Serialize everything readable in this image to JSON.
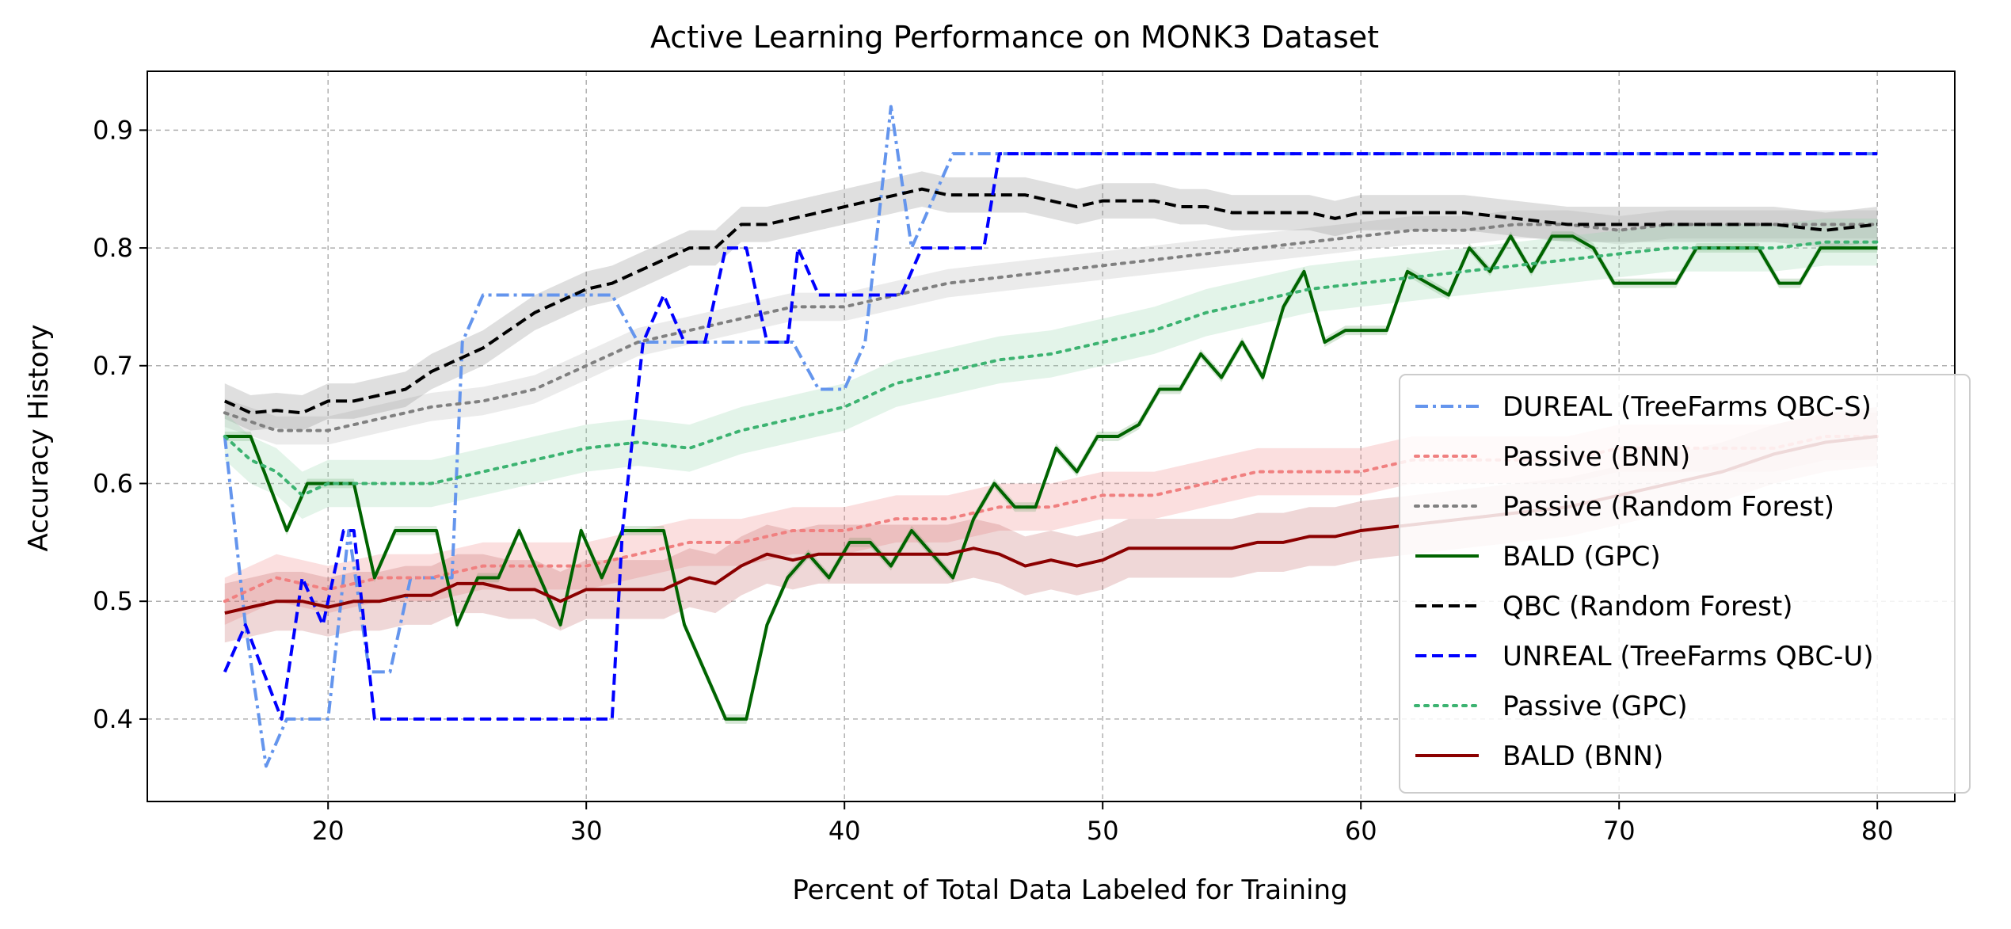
{
  "chart_data": {
    "type": "line",
    "title": "Active Learning Performance on MONK3 Dataset",
    "xlabel": "Percent of Total Data Labeled for Training",
    "ylabel": "Accuracy History",
    "xlim": [
      13,
      83
    ],
    "ylim": [
      0.33,
      0.95
    ],
    "xticks": [
      20,
      30,
      40,
      50,
      60,
      70,
      80
    ],
    "yticks": [
      0.4,
      0.5,
      0.6,
      0.7,
      0.8,
      0.9
    ],
    "grid": true,
    "legend_position": "center-right",
    "series": [
      {
        "name": "DUREAL (TreeFarms QBC-S)",
        "color": "#6495ED",
        "dash": "dashdot",
        "x": [
          16,
          16.8,
          17.6,
          18.4,
          19.2,
          20,
          20.8,
          21.6,
          22.4,
          23.2,
          24,
          24.8,
          25.2,
          26,
          27,
          28,
          29,
          30,
          31,
          32,
          33,
          34,
          35,
          36,
          37,
          38,
          39,
          40,
          40.8,
          41.8,
          42.6,
          43.4,
          44.2,
          45,
          46,
          50,
          60,
          70,
          80
        ],
        "y": [
          0.64,
          0.48,
          0.36,
          0.4,
          0.4,
          0.4,
          0.56,
          0.44,
          0.44,
          0.52,
          0.52,
          0.52,
          0.72,
          0.76,
          0.76,
          0.76,
          0.76,
          0.76,
          0.76,
          0.72,
          0.72,
          0.72,
          0.72,
          0.72,
          0.72,
          0.72,
          0.68,
          0.68,
          0.72,
          0.92,
          0.8,
          0.84,
          0.88,
          0.88,
          0.88,
          0.88,
          0.88,
          0.88,
          0.88
        ]
      },
      {
        "name": "Passive (BNN)",
        "color": "#F08080",
        "dash": "dotted",
        "band": "#F08080",
        "x": [
          16,
          18,
          20,
          22,
          24,
          26,
          28,
          30,
          32,
          34,
          36,
          38,
          40,
          42,
          44,
          46,
          48,
          50,
          52,
          54,
          56,
          58,
          60,
          62,
          64,
          66,
          68,
          70,
          72,
          74,
          76,
          78,
          80
        ],
        "y": [
          0.5,
          0.52,
          0.51,
          0.52,
          0.52,
          0.53,
          0.53,
          0.53,
          0.54,
          0.55,
          0.55,
          0.56,
          0.56,
          0.57,
          0.57,
          0.58,
          0.58,
          0.59,
          0.59,
          0.6,
          0.61,
          0.61,
          0.61,
          0.62,
          0.62,
          0.62,
          0.62,
          0.63,
          0.63,
          0.63,
          0.63,
          0.64,
          0.64
        ],
        "err": 0.02
      },
      {
        "name": "Passive (Random Forest)",
        "color": "#808080",
        "dash": "dotted",
        "band": "#B0B0B0",
        "x": [
          16,
          18,
          20,
          22,
          24,
          26,
          28,
          30,
          32,
          34,
          36,
          38,
          40,
          42,
          44,
          46,
          48,
          50,
          52,
          54,
          56,
          58,
          60,
          62,
          64,
          66,
          68,
          70,
          72,
          74,
          76,
          78,
          80
        ],
        "y": [
          0.66,
          0.645,
          0.645,
          0.655,
          0.665,
          0.67,
          0.68,
          0.7,
          0.72,
          0.73,
          0.74,
          0.75,
          0.75,
          0.76,
          0.77,
          0.775,
          0.78,
          0.785,
          0.79,
          0.795,
          0.8,
          0.805,
          0.81,
          0.815,
          0.815,
          0.82,
          0.82,
          0.815,
          0.82,
          0.82,
          0.82,
          0.82,
          0.82
        ],
        "err": 0.012
      },
      {
        "name": "BALD (GPC)",
        "color": "#006400",
        "dash": "solid",
        "band": "#5E9E5E",
        "x": [
          16,
          17,
          18.4,
          19.2,
          20,
          21,
          21.8,
          22.6,
          23.4,
          24.2,
          25,
          25.8,
          26.6,
          27.4,
          28.2,
          29,
          29.8,
          30.6,
          31.4,
          32.2,
          33,
          33.8,
          34.6,
          35.4,
          36.2,
          37,
          37.8,
          38.6,
          39.4,
          40.2,
          41,
          41.8,
          42.6,
          43.4,
          44.2,
          45,
          45.8,
          46.6,
          47.4,
          48.2,
          49,
          49.8,
          50.6,
          51.4,
          52.2,
          53,
          53.8,
          54.6,
          55.4,
          56.2,
          57,
          57.8,
          58.6,
          59.4,
          60.2,
          61,
          61.8,
          62.6,
          63.4,
          64.2,
          65,
          65.8,
          66.6,
          67.4,
          68.2,
          69,
          69.8,
          70.6,
          71.4,
          72.2,
          73,
          73.8,
          74.6,
          75.4,
          76.2,
          77,
          77.8,
          78.6,
          79.4,
          80
        ],
        "y": [
          0.64,
          0.64,
          0.56,
          0.6,
          0.6,
          0.6,
          0.52,
          0.56,
          0.56,
          0.56,
          0.48,
          0.52,
          0.52,
          0.56,
          0.52,
          0.48,
          0.56,
          0.52,
          0.56,
          0.56,
          0.56,
          0.48,
          0.44,
          0.4,
          0.4,
          0.48,
          0.52,
          0.54,
          0.52,
          0.55,
          0.55,
          0.53,
          0.56,
          0.54,
          0.52,
          0.57,
          0.6,
          0.58,
          0.58,
          0.63,
          0.61,
          0.64,
          0.64,
          0.65,
          0.68,
          0.68,
          0.71,
          0.69,
          0.72,
          0.69,
          0.75,
          0.78,
          0.72,
          0.73,
          0.73,
          0.73,
          0.78,
          0.77,
          0.76,
          0.8,
          0.78,
          0.81,
          0.78,
          0.81,
          0.81,
          0.8,
          0.77,
          0.77,
          0.77,
          0.77,
          0.8,
          0.8,
          0.8,
          0.8,
          0.77,
          0.77,
          0.8,
          0.8,
          0.8,
          0.8
        ],
        "err": 0.004
      },
      {
        "name": "QBC (Random Forest)",
        "color": "#000000",
        "dash": "dashed",
        "band": "#808080",
        "x": [
          16,
          17,
          18,
          19,
          20,
          21,
          22,
          23,
          24,
          25,
          26,
          27,
          28,
          29,
          30,
          31,
          32,
          33,
          34,
          35,
          36,
          37,
          38,
          39,
          40,
          41,
          42,
          43,
          44,
          45,
          46,
          47,
          48,
          49,
          50,
          51,
          52,
          53,
          54,
          55,
          56,
          57,
          58,
          59,
          60,
          62,
          64,
          66,
          68,
          70,
          72,
          74,
          76,
          78,
          80
        ],
        "y": [
          0.67,
          0.66,
          0.662,
          0.66,
          0.67,
          0.67,
          0.675,
          0.68,
          0.695,
          0.705,
          0.715,
          0.73,
          0.745,
          0.755,
          0.765,
          0.77,
          0.78,
          0.79,
          0.8,
          0.8,
          0.82,
          0.82,
          0.825,
          0.83,
          0.835,
          0.84,
          0.845,
          0.85,
          0.845,
          0.845,
          0.845,
          0.845,
          0.84,
          0.835,
          0.84,
          0.84,
          0.84,
          0.835,
          0.835,
          0.83,
          0.83,
          0.83,
          0.83,
          0.825,
          0.83,
          0.83,
          0.83,
          0.825,
          0.82,
          0.82,
          0.82,
          0.82,
          0.82,
          0.815,
          0.82
        ],
        "err": 0.015
      },
      {
        "name": "UNREAL (TreeFarms QBC-U)",
        "color": "#0000FF",
        "dash": "dashed",
        "x": [
          16,
          16.8,
          18.2,
          19,
          19.8,
          20.6,
          21,
          21.8,
          22.6,
          23.4,
          24.2,
          25,
          25.8,
          26.6,
          27.4,
          28.2,
          29,
          29.8,
          30.6,
          31,
          31.4,
          32.2,
          33,
          33.8,
          34.6,
          35.4,
          36.2,
          37,
          37.8,
          38.2,
          39,
          39.8,
          40.6,
          41.4,
          42.2,
          43,
          43.8,
          44.6,
          45.4,
          46,
          50,
          60,
          70,
          80
        ],
        "y": [
          0.44,
          0.48,
          0.4,
          0.52,
          0.48,
          0.56,
          0.56,
          0.4,
          0.4,
          0.4,
          0.4,
          0.4,
          0.4,
          0.4,
          0.4,
          0.4,
          0.4,
          0.4,
          0.4,
          0.4,
          0.56,
          0.72,
          0.76,
          0.72,
          0.72,
          0.8,
          0.8,
          0.72,
          0.72,
          0.8,
          0.76,
          0.76,
          0.76,
          0.76,
          0.76,
          0.8,
          0.8,
          0.8,
          0.8,
          0.88,
          0.88,
          0.88,
          0.88,
          0.88
        ]
      },
      {
        "name": "Passive (GPC)",
        "color": "#3CB371",
        "dash": "dotted",
        "band": "#8FD4A8",
        "x": [
          16,
          17,
          18,
          19,
          20,
          22,
          24,
          26,
          28,
          30,
          32,
          34,
          36,
          38,
          40,
          42,
          44,
          46,
          48,
          50,
          52,
          54,
          56,
          58,
          60,
          62,
          64,
          66,
          68,
          70,
          72,
          74,
          76,
          78,
          80
        ],
        "y": [
          0.64,
          0.62,
          0.61,
          0.59,
          0.6,
          0.6,
          0.6,
          0.61,
          0.62,
          0.63,
          0.635,
          0.63,
          0.645,
          0.655,
          0.665,
          0.685,
          0.695,
          0.705,
          0.71,
          0.72,
          0.73,
          0.745,
          0.755,
          0.765,
          0.77,
          0.775,
          0.78,
          0.785,
          0.79,
          0.795,
          0.8,
          0.8,
          0.8,
          0.805,
          0.805
        ],
        "err": 0.02
      },
      {
        "name": "BALD (BNN)",
        "color": "#8B0000",
        "dash": "solid",
        "band": "#C06060",
        "x": [
          16,
          17,
          18,
          19,
          20,
          21,
          22,
          23,
          24,
          25,
          26,
          27,
          28,
          29,
          30,
          31,
          32,
          33,
          34,
          35,
          36,
          37,
          38,
          39,
          40,
          41,
          42,
          43,
          44,
          45,
          46,
          47,
          48,
          49,
          50,
          51,
          52,
          53,
          54,
          55,
          56,
          57,
          58,
          59,
          60,
          62,
          64,
          66,
          68,
          70,
          72,
          74,
          76,
          78,
          80
        ],
        "y": [
          0.49,
          0.495,
          0.5,
          0.5,
          0.495,
          0.5,
          0.5,
          0.505,
          0.505,
          0.515,
          0.515,
          0.51,
          0.51,
          0.5,
          0.51,
          0.51,
          0.51,
          0.51,
          0.52,
          0.515,
          0.53,
          0.54,
          0.535,
          0.54,
          0.54,
          0.54,
          0.54,
          0.54,
          0.54,
          0.545,
          0.54,
          0.53,
          0.535,
          0.53,
          0.535,
          0.545,
          0.545,
          0.545,
          0.545,
          0.545,
          0.55,
          0.55,
          0.555,
          0.555,
          0.56,
          0.565,
          0.57,
          0.575,
          0.58,
          0.59,
          0.6,
          0.61,
          0.625,
          0.635,
          0.64
        ],
        "err": 0.025
      }
    ]
  }
}
